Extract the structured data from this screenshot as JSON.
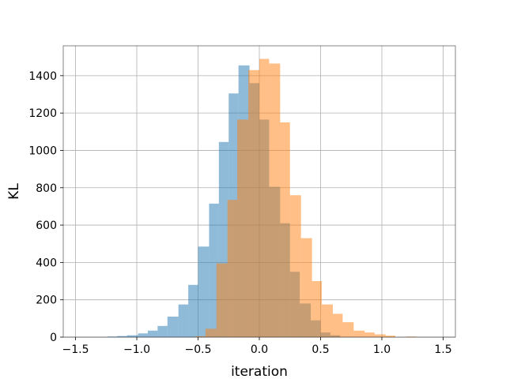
{
  "chart_data": {
    "type": "bar",
    "subtype": "overlapping-histogram",
    "title": "",
    "xlabel": "iteration",
    "ylabel": "KL",
    "xlim": [
      -1.6,
      1.6
    ],
    "ylim": [
      0,
      1560
    ],
    "x_ticks": [
      -1.5,
      -1.0,
      -0.5,
      0.0,
      0.5,
      1.0,
      1.5
    ],
    "x_tick_labels": [
      "−1.5",
      "−1.0",
      "−0.5",
      "0.0",
      "0.5",
      "1.0",
      "1.5"
    ],
    "y_ticks": [
      0,
      200,
      400,
      600,
      800,
      1000,
      1200,
      1400
    ],
    "y_tick_labels": [
      "0",
      "200",
      "400",
      "600",
      "800",
      "1000",
      "1200",
      "1400"
    ],
    "grid": true,
    "legend": "none",
    "series": [
      {
        "color": "#1f77b4",
        "alpha": 0.5,
        "bins": [
          [
            -1.24,
            -1.16,
            3
          ],
          [
            -1.16,
            -1.08,
            6
          ],
          [
            -1.08,
            -0.99,
            10
          ],
          [
            -0.99,
            -0.91,
            20
          ],
          [
            -0.91,
            -0.83,
            35
          ],
          [
            -0.83,
            -0.75,
            60
          ],
          [
            -0.75,
            -0.66,
            110
          ],
          [
            -0.66,
            -0.58,
            175
          ],
          [
            -0.58,
            -0.5,
            280
          ],
          [
            -0.5,
            -0.41,
            485
          ],
          [
            -0.41,
            -0.33,
            715
          ],
          [
            -0.33,
            -0.25,
            1045
          ],
          [
            -0.25,
            -0.17,
            1305
          ],
          [
            -0.17,
            -0.08,
            1455
          ],
          [
            -0.08,
            0.0,
            1360
          ],
          [
            0.0,
            0.08,
            1165
          ],
          [
            0.08,
            0.17,
            805
          ],
          [
            0.17,
            0.25,
            610
          ],
          [
            0.25,
            0.33,
            350
          ],
          [
            0.33,
            0.42,
            180
          ],
          [
            0.42,
            0.5,
            90
          ],
          [
            0.5,
            0.58,
            25
          ],
          [
            0.58,
            0.66,
            10
          ]
        ]
      },
      {
        "color": "#ff7f0e",
        "alpha": 0.5,
        "bins": [
          [
            -0.52,
            -0.44,
            5
          ],
          [
            -0.44,
            -0.35,
            45
          ],
          [
            -0.35,
            -0.26,
            395
          ],
          [
            -0.26,
            -0.18,
            735
          ],
          [
            -0.18,
            -0.09,
            1165
          ],
          [
            -0.09,
            0.0,
            1430
          ],
          [
            0.0,
            0.08,
            1490
          ],
          [
            0.08,
            0.17,
            1465
          ],
          [
            0.17,
            0.25,
            1150
          ],
          [
            0.25,
            0.34,
            760
          ],
          [
            0.34,
            0.43,
            530
          ],
          [
            0.43,
            0.51,
            300
          ],
          [
            0.51,
            0.6,
            175
          ],
          [
            0.6,
            0.68,
            125
          ],
          [
            0.68,
            0.77,
            80
          ],
          [
            0.77,
            0.86,
            35
          ],
          [
            0.86,
            0.94,
            25
          ],
          [
            0.94,
            1.03,
            15
          ],
          [
            1.03,
            1.11,
            8
          ],
          [
            1.2,
            1.28,
            3
          ]
        ]
      }
    ]
  }
}
